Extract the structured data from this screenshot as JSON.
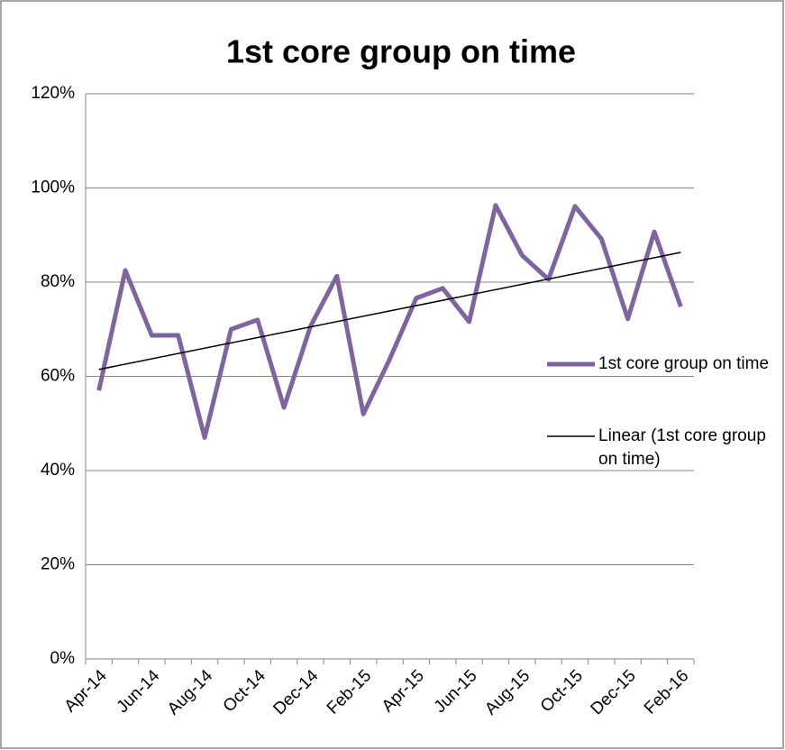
{
  "chart_data": {
    "type": "line",
    "title": "1st core group on time",
    "categories": [
      "Apr-14",
      null,
      "Jun-14",
      null,
      "Aug-14",
      null,
      "Oct-14",
      null,
      "Dec-14",
      null,
      "Feb-15",
      null,
      "Apr-15",
      null,
      "Jun-15",
      null,
      "Aug-15",
      null,
      "Oct-15",
      null,
      "Dec-15",
      null,
      "Feb-16"
    ],
    "series": [
      {
        "name": "1st core group on time",
        "color": "#8064a2",
        "values": [
          57,
          82.5,
          68.7,
          68.7,
          47,
          70,
          72,
          53.4,
          70.6,
          81.3,
          52,
          63.7,
          76.6,
          78.7,
          71.6,
          96.3,
          85.7,
          80.6,
          96.1,
          89.2,
          72.2,
          90.7,
          74.8
        ]
      }
    ],
    "trendline": {
      "name": "Linear (1st core group on time)",
      "color": "#000000"
    },
    "ylim": [
      0,
      120
    ],
    "yticks": [
      {
        "value": 0,
        "label": "0%"
      },
      {
        "value": 20,
        "label": "20%"
      },
      {
        "value": 40,
        "label": "40%"
      },
      {
        "value": 60,
        "label": "60%"
      },
      {
        "value": 80,
        "label": "80%"
      },
      {
        "value": 100,
        "label": "100%"
      },
      {
        "value": 120,
        "label": "120%"
      }
    ],
    "grid": true,
    "legend": "right"
  }
}
